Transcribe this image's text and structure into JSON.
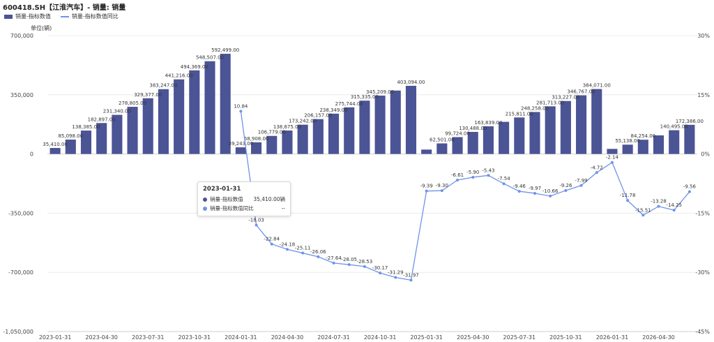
{
  "header": {
    "title": "600418.SH【江淮汽车】- 销量: 销量"
  },
  "legend": {
    "bar_label": "销量-指标数值",
    "line_label": "销量-指标数值同比"
  },
  "axis": {
    "unit_label": "单位(辆)"
  },
  "colors": {
    "bar": "#4b5495",
    "line": "#6f93e8"
  },
  "tooltip": {
    "title": "2023-01-31",
    "row1_name": "销量-指标数值",
    "row1_value": "35,410.00辆",
    "row2_name": "销量-指标数值同比",
    "row2_value": "--"
  },
  "chart_data": {
    "type": "bar",
    "title": "600418.SH【江淮汽车】- 销量: 销量",
    "x_tick_labels": [
      "2023-01-31",
      "2023-04-30",
      "2023-07-31",
      "2023-10-31",
      "2024-01-31",
      "2024-04-30",
      "2024-07-31",
      "2024-10-31",
      "2025-01-31",
      "2025-04-30",
      "2025-07-31",
      "2025-10-31",
      "2026-01-31",
      "2026-04-30"
    ],
    "y_left": {
      "ylim": [
        -1050000,
        700000
      ],
      "ticks": [
        "700,000",
        "350,000",
        "0",
        "-350,000",
        "-700,000",
        "-1,050,000"
      ]
    },
    "y_right": {
      "ylim": [
        -45,
        30
      ],
      "ticks": [
        "30%",
        "15%",
        "0%",
        "-15%",
        "-30%",
        "-45%"
      ]
    },
    "grid": true,
    "series": [
      {
        "name": "销量-指标数值",
        "type": "bar",
        "values": [
          35410,
          85098,
          138385,
          182897,
          231340,
          278805,
          329377,
          383247,
          441216,
          494369,
          548507,
          592499,
          39243,
          68908,
          106779,
          138675,
          173242,
          206157,
          238349,
          275744,
          315335,
          345209,
          375000,
          403094,
          26000,
          62501,
          99724,
          130488,
          163839,
          190000,
          215811,
          248258,
          281713,
          313227,
          346767,
          384071,
          30000,
          55138,
          84254,
          110000,
          140495,
          172386
        ],
        "labels": [
          "35,410.00",
          "85,098.00",
          "138,385.00",
          "182,897.00",
          "231,340.00",
          "278,805.00",
          "329,377.00",
          "383,247.00",
          "441,216.00",
          "494,369.00",
          "548,507.00",
          "592,499.00",
          "39,243.00",
          "68,908.00",
          "106,779.00",
          "138,675.00",
          "173,242.00",
          "206,157.00",
          "238,349.00",
          "275,744.00",
          "315,335.00",
          "345,209.00",
          "",
          "403,094.00",
          "",
          "62,501.00",
          "99,724.00",
          "130,488.00",
          "163,839.00",
          "",
          "215,811.00",
          "248,258.00",
          "281,713.00",
          "313,227.00",
          "346,767.00",
          "384,071.00",
          "",
          "55,138.00",
          "84,254.00",
          "",
          "140,495.00",
          "172,386.00"
        ]
      },
      {
        "name": "销量-指标数值同比",
        "type": "line",
        "unit": "%",
        "start_index": 12,
        "values": [
          10.84,
          -18.03,
          -22.84,
          -24.18,
          -25.11,
          -26.06,
          -27.64,
          -28.05,
          -28.53,
          -30.17,
          -31.29,
          -31.97,
          -9.39,
          -9.3,
          -6.61,
          -5.9,
          -5.43,
          -7.54,
          -9.46,
          -9.97,
          -10.66,
          -9.26,
          -7.99,
          -4.72,
          -2.14,
          -11.78,
          -15.51,
          -13.28,
          -14.25,
          -9.56
        ],
        "labels": [
          "10.84",
          "-18.03",
          "-22.84",
          "-24.18",
          "-25.11",
          "-26.06",
          "-27.64",
          "-28.05",
          "-28.53",
          "-30.17",
          "-31.29",
          "-31.97",
          "-9.39",
          "-9.30",
          "-6.61",
          "-5.90",
          "-5.43",
          "-7.54",
          "-9.46",
          "-9.97",
          "-10.66",
          "-9.26",
          "-7.99",
          "-4.72",
          "-2.14",
          "-11.78",
          "-15.51",
          "-13.28",
          "-14.25",
          "-9.56"
        ]
      }
    ]
  }
}
